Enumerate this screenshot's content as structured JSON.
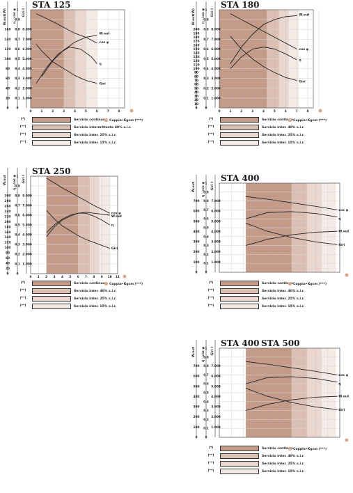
{
  "colors": {
    "band1": "#c49a88",
    "band2": "#dcbfb3",
    "band3": "#ead8d0",
    "band4": "#f4ebe6",
    "dot": "#d8a690"
  },
  "legend_items": [
    {
      "key": "(*)",
      "label": "Servizio continuo",
      "color": "#c49a88"
    },
    {
      "key": "(**)",
      "label": "Servizio intermittente 40% s.i.r.",
      "label_short": "Servizio inter. 40% s.i.r.",
      "color": "#dcbfb3"
    },
    {
      "key": "(**)",
      "label": "Servizio inter. 25% s.i.r.",
      "color": "#ead8d0"
    },
    {
      "key": "(**)",
      "label": "Servizio inter. 15% s.i.r.",
      "color": "#f4ebe6"
    }
  ],
  "legend_extra": {
    "text": "Coppia•Kgcm",
    "suffix": "(***)"
  },
  "chart_data": [
    {
      "id": "sta125",
      "type": "line",
      "title": "STA 125",
      "axis_headers": [
        "W.out(W)",
        "η · cos φ",
        "Giri I"
      ],
      "watt_ticks": [
        "160",
        "140",
        "120",
        "100",
        "80",
        "60",
        "40",
        "20",
        "0"
      ],
      "eff_ticks": [
        "1",
        "0,9",
        "0,8",
        "0,7",
        "0,6",
        "0,5",
        "0,4",
        "0,3",
        "0,2",
        "0,1",
        "0"
      ],
      "rpm_ticks": [
        "8.000",
        "7.000",
        "6.000",
        "5.000",
        "4.000",
        "3.000",
        "2.000",
        "1.000"
      ],
      "x_ticks": [
        "0",
        "1",
        "2",
        "3",
        "4",
        "5",
        "6",
        "7",
        "8"
      ],
      "xlim": [
        0,
        8.5
      ],
      "bands": [
        [
          0,
          3
        ],
        [
          3,
          4
        ],
        [
          4,
          5
        ],
        [
          5,
          6
        ]
      ],
      "series": [
        {
          "name": "W.out",
          "x": [
            1,
            2,
            3,
            4,
            5,
            6
          ],
          "y": [
            0.32,
            0.48,
            0.59,
            0.67,
            0.72,
            0.74
          ],
          "label_x": 6.2,
          "label_y": 0.76
        },
        {
          "name": "cos φ",
          "x": [
            0.5,
            2,
            3,
            4,
            5,
            6
          ],
          "y": [
            0.96,
            0.88,
            0.82,
            0.76,
            0.72,
            0.66
          ],
          "label_x": 6.2,
          "label_y": 0.67
        },
        {
          "name": "η",
          "x": [
            0.5,
            1.5,
            2.5,
            3.5,
            4.5,
            5.5,
            6
          ],
          "y": [
            0.25,
            0.42,
            0.55,
            0.62,
            0.6,
            0.52,
            0.45
          ],
          "label_x": 6.2,
          "label_y": 0.45
        },
        {
          "name": "Giri",
          "x": [
            0.5,
            1,
            2,
            3,
            4,
            5,
            6
          ],
          "y": [
            0.65,
            0.58,
            0.47,
            0.4,
            0.33,
            0.28,
            0.25
          ],
          "label_x": 6.2,
          "label_y": 0.25
        }
      ]
    },
    {
      "id": "sta180",
      "type": "line",
      "title": "STA 180",
      "axis_headers": [
        "W.out(W)",
        "η · cos φ",
        "Giri I"
      ],
      "watt_ticks": [
        "200",
        "190",
        "180",
        "170",
        "160",
        "150",
        "140",
        "130",
        "120",
        "110",
        "100",
        "90",
        "80",
        "70",
        "60",
        "50",
        "40",
        "30",
        "20",
        "10",
        "0"
      ],
      "eff_ticks": [
        "1",
        "0,9",
        "0,8",
        "0,7",
        "0,6",
        "0,5",
        "0,4",
        "0,3",
        "0,2",
        "0,1",
        "0"
      ],
      "rpm_ticks": [
        "8.000",
        "7.000",
        "6.000",
        "5.000",
        "4.000",
        "3.000",
        "2.000",
        "1.000"
      ],
      "x_ticks": [
        "0",
        "1",
        "2",
        "3",
        "4",
        "5",
        "6",
        "7",
        "8"
      ],
      "xlim": [
        0,
        8.5
      ],
      "bands": [
        [
          0,
          4.3
        ],
        [
          4.3,
          5.4
        ],
        [
          5.4,
          6.3
        ],
        [
          6.3,
          7.2
        ]
      ],
      "series": [
        {
          "name": "W.out",
          "x": [
            1,
            2,
            3,
            4,
            5,
            6,
            7
          ],
          "y": [
            0.45,
            0.62,
            0.75,
            0.85,
            0.9,
            0.93,
            0.94
          ],
          "label_x": 7.2,
          "label_y": 0.95
        },
        {
          "name": "cos φ",
          "x": [
            1,
            2,
            3,
            4,
            5,
            6,
            7
          ],
          "y": [
            0.96,
            0.9,
            0.84,
            0.78,
            0.72,
            0.66,
            0.6
          ],
          "label_x": 7.2,
          "label_y": 0.6
        },
        {
          "name": "η",
          "x": [
            1,
            2,
            3,
            4,
            5,
            6,
            7
          ],
          "y": [
            0.4,
            0.52,
            0.6,
            0.62,
            0.6,
            0.55,
            0.49
          ],
          "label_x": 7.2,
          "label_y": 0.49
        },
        {
          "name": "Giri",
          "x": [
            1,
            2,
            3,
            4,
            5,
            6,
            7
          ],
          "y": [
            0.73,
            0.6,
            0.5,
            0.42,
            0.36,
            0.31,
            0.28
          ],
          "label_x": 7.2,
          "label_y": 0.27
        }
      ]
    },
    {
      "id": "sta250",
      "type": "line",
      "title": "STA 250",
      "axis_headers": [
        "W.out",
        "η · cos φ",
        "Giri I"
      ],
      "watt_ticks": [
        "300",
        "280",
        "260",
        "240",
        "220",
        "200",
        "180",
        "160",
        "140",
        "120",
        "100",
        "80",
        "60",
        "40",
        "20",
        "0"
      ],
      "eff_ticks": [
        "1",
        "0,9",
        "0,8",
        "0,7",
        "0,6",
        "0,5",
        "0,4",
        "0,3",
        "0,2",
        "0,1",
        "0"
      ],
      "rpm_ticks": [
        "8.000",
        "7.000",
        "6.000",
        "5.000",
        "4.000",
        "3.000",
        "2.000",
        "1.000"
      ],
      "x_ticks": [
        "0",
        "1",
        "2",
        "3",
        "4",
        "5",
        "6",
        "7",
        "8",
        "9",
        "10",
        "11"
      ],
      "xlim": [
        0,
        11
      ],
      "bands": [
        [
          2,
          6
        ],
        [
          6,
          7.5
        ],
        [
          7.5,
          8.7
        ],
        [
          8.7,
          10
        ]
      ],
      "series": [
        {
          "name": "cos φ",
          "x": [
            2,
            4,
            6,
            8,
            10
          ],
          "y": [
            0.98,
            0.88,
            0.79,
            0.7,
            0.62
          ],
          "label_x": 10.2,
          "label_y": 0.62
        },
        {
          "name": "W.out",
          "x": [
            2,
            3,
            4,
            5,
            6,
            7,
            8,
            9,
            10
          ],
          "y": [
            0.42,
            0.5,
            0.56,
            0.6,
            0.62,
            0.63,
            0.62,
            0.61,
            0.6
          ],
          "label_x": 10.2,
          "label_y": 0.59
        },
        {
          "name": "η",
          "x": [
            2,
            3,
            4,
            5,
            6,
            7,
            8,
            9,
            10
          ],
          "y": [
            0.38,
            0.48,
            0.55,
            0.59,
            0.62,
            0.62,
            0.59,
            0.55,
            0.5
          ],
          "label_x": 10.2,
          "label_y": 0.5
        },
        {
          "name": "Giri",
          "x": [
            2,
            3,
            4,
            5,
            6,
            7,
            8,
            9,
            10
          ],
          "y": [
            0.65,
            0.56,
            0.49,
            0.44,
            0.39,
            0.35,
            0.32,
            0.29,
            0.26
          ],
          "label_x": 10.2,
          "label_y": 0.26
        }
      ]
    },
    {
      "id": "sta400a",
      "type": "line",
      "title": "STA 400",
      "axis_headers": [
        "W.out",
        "η · cos φ",
        "Giri I"
      ],
      "watt_ticks": [
        "700",
        "600",
        "500",
        "400",
        "300",
        "200",
        "100",
        "0"
      ],
      "eff_ticks": [
        "1",
        "0,9",
        "0,8",
        "0,7",
        "0,6",
        "0,5",
        "0,4",
        "0,3",
        "0,2",
        "0,1",
        "0"
      ],
      "rpm_ticks": [
        "7.000",
        "6.000",
        "5.000",
        "4.000",
        "3.000",
        "2.000",
        "1.000"
      ],
      "x_ticks": [],
      "xlim": [
        0,
        10
      ],
      "bands": [
        [
          2.2,
          6
        ],
        [
          6,
          7.3
        ],
        [
          7.3,
          8.5
        ],
        [
          8.5,
          9.7
        ]
      ],
      "series": [
        {
          "name": "cos φ",
          "x": [
            2.2,
            4,
            6,
            8,
            9.8
          ],
          "y": [
            0.85,
            0.82,
            0.78,
            0.74,
            0.7
          ],
          "label_x": 9.9,
          "label_y": 0.7
        },
        {
          "name": "η",
          "x": [
            2.2,
            4,
            6,
            8,
            9.8
          ],
          "y": [
            0.6,
            0.67,
            0.68,
            0.66,
            0.62
          ],
          "label_x": 9.9,
          "label_y": 0.6
        },
        {
          "name": "W.out",
          "x": [
            2.2,
            4,
            6,
            8,
            9.8
          ],
          "y": [
            0.3,
            0.37,
            0.42,
            0.45,
            0.46
          ],
          "label_x": 9.9,
          "label_y": 0.46
        },
        {
          "name": "Giri",
          "x": [
            2.2,
            4,
            6,
            8,
            9.8
          ],
          "y": [
            0.55,
            0.46,
            0.39,
            0.34,
            0.31
          ],
          "label_x": 9.9,
          "label_y": 0.31
        }
      ]
    },
    {
      "id": "sta400b",
      "type": "line",
      "title": "STA 400",
      "title2": "STA 500",
      "axis_headers": [
        "W.out",
        "η · cos φ",
        "Giri I"
      ],
      "watt_ticks": [
        "700",
        "600",
        "500",
        "400",
        "300",
        "200",
        "100",
        "0"
      ],
      "eff_ticks": [
        "1",
        "0,9",
        "0,8",
        "0,7",
        "0,6",
        "0,5",
        "0,4",
        "0,3",
        "0,2",
        "0,1",
        "0"
      ],
      "rpm_ticks": [
        "7.000",
        "6.000",
        "5.000",
        "4.000",
        "3.000",
        "2.000",
        "1.000"
      ],
      "x_ticks": [],
      "xlim": [
        0,
        10
      ],
      "bands": [
        [
          2.2,
          6
        ],
        [
          6,
          7.3
        ],
        [
          7.3,
          8.5
        ],
        [
          8.5,
          9.7
        ]
      ],
      "series": [
        {
          "name": "cos φ",
          "x": [
            2.2,
            4,
            6,
            8,
            9.8
          ],
          "y": [
            0.85,
            0.82,
            0.78,
            0.74,
            0.7
          ],
          "label_x": 9.9,
          "label_y": 0.7
        },
        {
          "name": "η",
          "x": [
            2.2,
            4,
            6,
            8,
            9.8
          ],
          "y": [
            0.6,
            0.67,
            0.68,
            0.66,
            0.62
          ],
          "label_x": 9.9,
          "label_y": 0.6
        },
        {
          "name": "W.out",
          "x": [
            2.2,
            4,
            6,
            8,
            9.8
          ],
          "y": [
            0.3,
            0.37,
            0.42,
            0.45,
            0.46
          ],
          "label_x": 9.9,
          "label_y": 0.46
        },
        {
          "name": "Giri",
          "x": [
            2.2,
            4,
            6,
            8,
            9.8
          ],
          "y": [
            0.55,
            0.46,
            0.39,
            0.34,
            0.31
          ],
          "label_x": 9.9,
          "label_y": 0.31
        }
      ]
    }
  ]
}
